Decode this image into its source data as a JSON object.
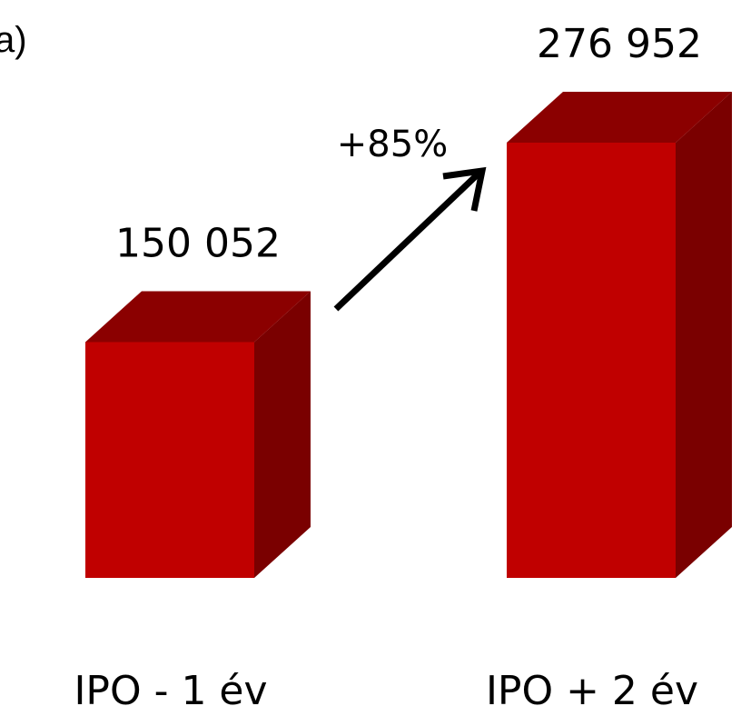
{
  "header": {
    "partial_title": "a)"
  },
  "chart_data": {
    "type": "bar",
    "categories": [
      "IPO - 1 év",
      "IPO + 2 év"
    ],
    "values": [
      150052,
      276952
    ],
    "value_labels": [
      "150 052",
      "276 952"
    ],
    "annotation": "+85%",
    "ylim": [
      0,
      300000
    ],
    "grid": false,
    "colors": {
      "front": "#c00000",
      "top": "#8b0000",
      "side": "#7a0000",
      "arrow": "#000000"
    }
  }
}
